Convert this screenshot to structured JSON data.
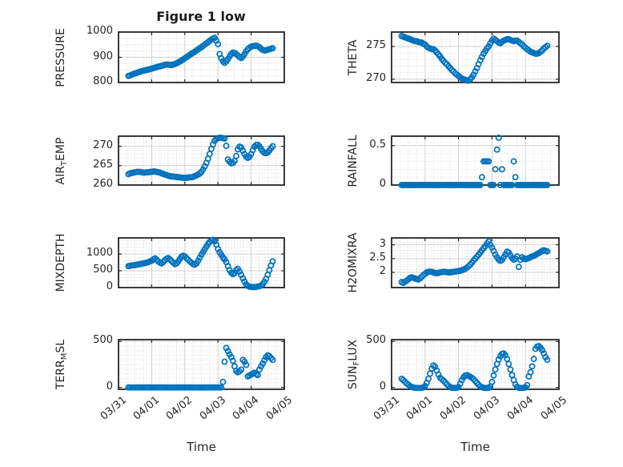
{
  "figure": {
    "title": "Figure 1 low",
    "xlabel": "Time",
    "background": "#ffffff"
  },
  "style": {
    "marker_color": "#0072BD",
    "axis_color": "#262626",
    "major_grid_color": "#d2d2d2",
    "minor_grid_color": "#c6c6c6",
    "text_color": "#262626"
  },
  "time_axis": {
    "tick_labels": [
      "03/31",
      "04/01",
      "04/02",
      "04/03",
      "04/04",
      "04/05"
    ],
    "tick_values": [
      0,
      1,
      2,
      3,
      4,
      5
    ],
    "range": [
      0,
      5
    ],
    "minor_step": 0.25
  },
  "chart_data": [
    {
      "type": "scatter",
      "name": "pressure",
      "row": 0,
      "col": 0,
      "ylabel": {
        "pre": "PRESSURE",
        "sub": "",
        "post": ""
      },
      "ylim": [
        800,
        1000
      ],
      "yticks": [
        800,
        900,
        1000
      ],
      "ytick_labels": [
        "800",
        "900",
        "1000"
      ],
      "yminor_step": 25,
      "t0": 0.3,
      "dt": 0.05,
      "values": [
        826,
        828,
        831,
        834,
        836,
        838,
        841,
        843,
        845,
        847,
        848,
        850,
        851,
        853,
        855,
        857,
        859,
        861,
        863,
        864,
        866,
        868,
        870,
        871,
        871,
        870,
        869,
        871,
        873,
        876,
        880,
        883,
        887,
        891,
        896,
        900,
        905,
        909,
        914,
        918,
        922,
        927,
        931,
        936,
        940,
        945,
        950,
        955,
        960,
        965,
        970,
        974,
        977,
        966,
        952,
        913,
        896,
        884,
        878,
        884,
        893,
        903,
        913,
        919,
        917,
        913,
        907,
        901,
        897,
        903,
        913,
        924,
        932,
        938,
        942,
        944,
        945,
        946,
        944,
        940,
        934,
        929,
        927,
        928,
        930,
        932,
        934,
        936
      ]
    },
    {
      "type": "scatter",
      "name": "theta",
      "row": 0,
      "col": 1,
      "ylabel": {
        "pre": "THETA",
        "sub": "",
        "post": ""
      },
      "ylim": [
        269.5,
        277.2
      ],
      "yticks": [
        270,
        275
      ],
      "ytick_labels": [
        "270",
        "275"
      ],
      "yminor_step": 1,
      "t0": 0.3,
      "dt": 0.05,
      "values": [
        276.6,
        276.5,
        276.4,
        276.3,
        276.2,
        276.1,
        276.0,
        275.9,
        275.8,
        275.8,
        275.7,
        275.6,
        275.6,
        275.4,
        275.3,
        275.0,
        274.8,
        274.7,
        274.6,
        274.6,
        274.4,
        274.1,
        273.8,
        273.5,
        273.1,
        272.8,
        272.5,
        272.3,
        272.0,
        271.7,
        271.4,
        271.2,
        270.9,
        270.7,
        270.5,
        270.3,
        270.1,
        270.0,
        269.9,
        269.8,
        269.8,
        270.0,
        270.3,
        270.7,
        271.2,
        271.7,
        272.3,
        272.9,
        273.4,
        273.9,
        274.3,
        274.7,
        275.0,
        275.5,
        275.9,
        276.2,
        276.0,
        275.8,
        275.6,
        275.5,
        275.7,
        275.9,
        276.0,
        276.1,
        276.1,
        276.0,
        275.9,
        275.8,
        275.9,
        275.9,
        275.7,
        275.5,
        275.3,
        275.0,
        274.8,
        274.6,
        274.4,
        274.2,
        274.1,
        274.0,
        273.9,
        273.9,
        274.0,
        274.2,
        274.4,
        274.7,
        274.9,
        275.1
      ]
    },
    {
      "type": "scatter",
      "name": "air_temp",
      "row": 1,
      "col": 0,
      "ylabel": {
        "pre": "AIR",
        "sub": "T",
        "post": "EMP"
      },
      "ylim": [
        260,
        272.6
      ],
      "yticks": [
        260,
        265,
        270
      ],
      "ytick_labels": [
        "260",
        "265",
        "270"
      ],
      "yminor_step": 1,
      "t0": 0.3,
      "dt": 0.05,
      "values": [
        262.8,
        263.0,
        263.1,
        263.2,
        263.3,
        263.4,
        263.4,
        263.4,
        263.3,
        263.2,
        263.2,
        263.3,
        263.3,
        263.4,
        263.4,
        263.5,
        263.5,
        263.4,
        263.3,
        263.2,
        263.0,
        262.9,
        262.7,
        262.6,
        262.4,
        262.3,
        262.2,
        262.2,
        262.1,
        262.1,
        262.0,
        262.0,
        261.9,
        261.9,
        261.8,
        261.9,
        261.9,
        262.0,
        262.0,
        262.1,
        262.3,
        262.5,
        262.7,
        263.0,
        263.4,
        264.0,
        264.8,
        265.7,
        266.8,
        268.0,
        269.3,
        270.5,
        271.4,
        271.9,
        272.1,
        272.2,
        272.2,
        272.1,
        272.0,
        270.1,
        266.6,
        266.0,
        265.6,
        265.7,
        266.2,
        267.5,
        269.2,
        269.9,
        269.7,
        268.9,
        268.0,
        267.3,
        267.0,
        267.3,
        268.0,
        269.0,
        269.9,
        270.3,
        270.4,
        270.0,
        269.3,
        268.7,
        268.3,
        268.2,
        268.4,
        268.9,
        269.5,
        270.0
      ]
    },
    {
      "type": "scatter",
      "name": "rainfall",
      "row": 1,
      "col": 1,
      "ylabel": {
        "pre": "RAINFALL",
        "sub": "",
        "post": ""
      },
      "ylim": [
        0,
        0.62
      ],
      "yticks": [
        0,
        0.5
      ],
      "ytick_labels": [
        "0",
        "0.5"
      ],
      "yminor_step": 0.1,
      "t0": 0.3,
      "dt": 0.05,
      "values": [
        0,
        0,
        0,
        0,
        0,
        0,
        0,
        0,
        0,
        0,
        0,
        0,
        0,
        0,
        0,
        0,
        0,
        0,
        0,
        0,
        0,
        0,
        0,
        0,
        0,
        0,
        0,
        0,
        0,
        0,
        0,
        0,
        0,
        0,
        0,
        0,
        0,
        0,
        0,
        0,
        0,
        0,
        0,
        0,
        0,
        0,
        0,
        0,
        0.1,
        0.3,
        0.3,
        0.3,
        0.3,
        0,
        0,
        0,
        0.2,
        0.45,
        0.6,
        0,
        0.2,
        0,
        0,
        0,
        0,
        0,
        0,
        0.3,
        0.1,
        0,
        0,
        0,
        0,
        0,
        0,
        0,
        0,
        0,
        0,
        0,
        0,
        0,
        0,
        0,
        0,
        0,
        0,
        0
      ]
    },
    {
      "type": "scatter",
      "name": "mixdepth",
      "row": 2,
      "col": 0,
      "ylabel": {
        "pre": "MIXDEPTH",
        "sub": "",
        "post": ""
      },
      "ylim": [
        0,
        1480
      ],
      "yticks": [
        0,
        500,
        1000
      ],
      "ytick_labels": [
        "0",
        "500",
        "1000"
      ],
      "yminor_step": 100,
      "t0": 0.3,
      "dt": 0.05,
      "values": [
        640,
        650,
        660,
        665,
        670,
        680,
        690,
        700,
        710,
        720,
        730,
        745,
        760,
        780,
        800,
        840,
        870,
        830,
        780,
        740,
        720,
        760,
        820,
        860,
        880,
        840,
        790,
        740,
        700,
        720,
        780,
        850,
        920,
        950,
        930,
        880,
        830,
        780,
        740,
        700,
        680,
        720,
        800,
        890,
        980,
        1060,
        1140,
        1220,
        1300,
        1360,
        1400,
        1420,
        1380,
        1280,
        1150,
        1050,
        980,
        900,
        840,
        760,
        640,
        520,
        440,
        400,
        430,
        520,
        560,
        480,
        380,
        280,
        180,
        100,
        50,
        30,
        20,
        15,
        15,
        20,
        30,
        40,
        60,
        100,
        170,
        260,
        380,
        520,
        660,
        780
      ]
    },
    {
      "type": "scatter",
      "name": "h2omixra",
      "row": 2,
      "col": 1,
      "ylabel": {
        "pre": "H2OMIXRA",
        "sub": "",
        "post": ""
      },
      "ylim": [
        1.45,
        3.25
      ],
      "yticks": [
        2,
        2.5,
        3
      ],
      "ytick_labels": [
        "2",
        "2.5",
        "3"
      ],
      "yminor_step": 0.1,
      "t0": 0.3,
      "dt": 0.05,
      "values": [
        1.65,
        1.62,
        1.66,
        1.7,
        1.75,
        1.8,
        1.82,
        1.8,
        1.78,
        1.76,
        1.74,
        1.78,
        1.84,
        1.9,
        1.95,
        2.0,
        2.02,
        2.03,
        2.02,
        2.0,
        1.98,
        1.97,
        1.98,
        2.0,
        2.01,
        2.02,
        2.02,
        2.01,
        2.0,
        2.0,
        2.01,
        2.02,
        2.03,
        2.04,
        2.05,
        2.06,
        2.08,
        2.1,
        2.13,
        2.17,
        2.22,
        2.28,
        2.35,
        2.43,
        2.5,
        2.57,
        2.64,
        2.72,
        2.8,
        2.88,
        2.95,
        3.05,
        3.12,
        3.0,
        2.9,
        2.78,
        2.65,
        2.55,
        2.46,
        2.42,
        2.45,
        2.55,
        2.65,
        2.75,
        2.72,
        2.62,
        2.52,
        2.46,
        2.5,
        2.58,
        2.2,
        2.45,
        2.55,
        2.5,
        2.48,
        2.5,
        2.52,
        2.55,
        2.58,
        2.6,
        2.63,
        2.67,
        2.7,
        2.74,
        2.78,
        2.8,
        2.78,
        2.76
      ]
    },
    {
      "type": "scatter",
      "name": "terr_msl",
      "row": 3,
      "col": 0,
      "ylabel": {
        "pre": "TERR",
        "sub": "M",
        "post": "SL"
      },
      "ylim": [
        -20,
        520
      ],
      "yticks": [
        0,
        500
      ],
      "ytick_labels": [
        "0",
        "500"
      ],
      "yminor_step": 50,
      "t0": 0.3,
      "dt": 0.05,
      "values": [
        0,
        0,
        0,
        0,
        0,
        0,
        0,
        0,
        0,
        0,
        0,
        0,
        0,
        0,
        0,
        0,
        0,
        0,
        0,
        0,
        0,
        0,
        0,
        0,
        0,
        0,
        0,
        0,
        0,
        0,
        0,
        0,
        0,
        0,
        0,
        0,
        0,
        0,
        0,
        0,
        0,
        0,
        0,
        0,
        0,
        0,
        0,
        0,
        0,
        0,
        0,
        0,
        0,
        0,
        0,
        0,
        0,
        60,
        280,
        430,
        395,
        360,
        330,
        290,
        230,
        180,
        165,
        175,
        195,
        300,
        280,
        245,
        120,
        130,
        140,
        150,
        160,
        145,
        135,
        195,
        230,
        260,
        295,
        330,
        350,
        340,
        320,
        300
      ]
    },
    {
      "type": "scatter",
      "name": "sun_flux",
      "row": 3,
      "col": 1,
      "ylabel": {
        "pre": "SUN",
        "sub": "F",
        "post": "LUX"
      },
      "ylim": [
        -20,
        520
      ],
      "yticks": [
        0,
        500
      ],
      "ytick_labels": [
        "0",
        "500"
      ],
      "yminor_step": 50,
      "t0": 0.3,
      "dt": 0.05,
      "values": [
        95,
        80,
        62,
        45,
        30,
        15,
        5,
        0,
        -3,
        -5,
        -5,
        -5,
        -3,
        0,
        15,
        50,
        95,
        150,
        205,
        240,
        225,
        185,
        140,
        105,
        90,
        75,
        55,
        35,
        18,
        5,
        -3,
        -5,
        -5,
        -3,
        5,
        40,
        80,
        110,
        130,
        135,
        125,
        115,
        105,
        90,
        70,
        50,
        30,
        12,
        2,
        -3,
        -5,
        -5,
        -3,
        10,
        60,
        130,
        195,
        255,
        305,
        340,
        365,
        370,
        350,
        310,
        255,
        195,
        135,
        80,
        35,
        8,
        -3,
        -5,
        -5,
        -3,
        0,
        25,
        120,
        165,
        230,
        310,
        420,
        445,
        450,
        430,
        405,
        370,
        330,
        300
      ]
    }
  ]
}
